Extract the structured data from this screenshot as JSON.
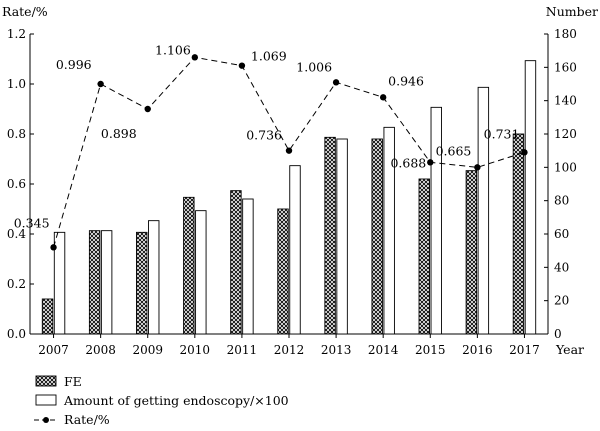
{
  "chart_data": {
    "type": "bar",
    "categories": [
      "2007",
      "2008",
      "2009",
      "2010",
      "2011",
      "2012",
      "2013",
      "2014",
      "2015",
      "2016",
      "2017"
    ],
    "x_axis_label": "Year",
    "y_left": {
      "label": "Rate/%",
      "min": 0,
      "max": 1.2,
      "ticks": [
        0.0,
        0.2,
        0.4,
        0.6,
        0.8,
        1.0,
        1.2
      ],
      "tick_labels": [
        "0.0",
        "0.2",
        "0.4",
        "0.6",
        "0.8",
        "1.0",
        "1.2"
      ]
    },
    "y_right": {
      "label": "Number",
      "min": 0,
      "max": 180,
      "ticks": [
        0,
        20,
        40,
        60,
        80,
        100,
        120,
        140,
        160,
        180
      ],
      "tick_labels": [
        "0",
        "20",
        "40",
        "60",
        "80",
        "100",
        "120",
        "140",
        "160",
        "180"
      ]
    },
    "series": [
      {
        "name": "FE",
        "kind": "bar",
        "axis": "right",
        "pattern": "crosshatch",
        "values": [
          21,
          62,
          61,
          82,
          86,
          75,
          118,
          117,
          93,
          98,
          120
        ]
      },
      {
        "name": "Amount of getting endoscopy/×100",
        "kind": "bar",
        "axis": "right",
        "pattern": "none",
        "values": [
          61,
          62,
          68,
          74,
          81,
          101,
          117,
          124,
          136,
          148,
          164
        ]
      },
      {
        "name": "Rate/%",
        "kind": "line",
        "axis": "right",
        "style": "dashed-dot",
        "values": [
          52,
          150,
          135,
          166,
          161,
          110,
          151,
          142,
          103,
          100,
          109
        ]
      }
    ],
    "data_labels": [
      "0.345",
      "0.996",
      "0.898",
      "1.106",
      "1.069",
      "0.736",
      "1.006",
      "0.946",
      "0.688",
      "0.665",
      "0.731"
    ],
    "legend_position": "bottom-left",
    "grid": false
  }
}
